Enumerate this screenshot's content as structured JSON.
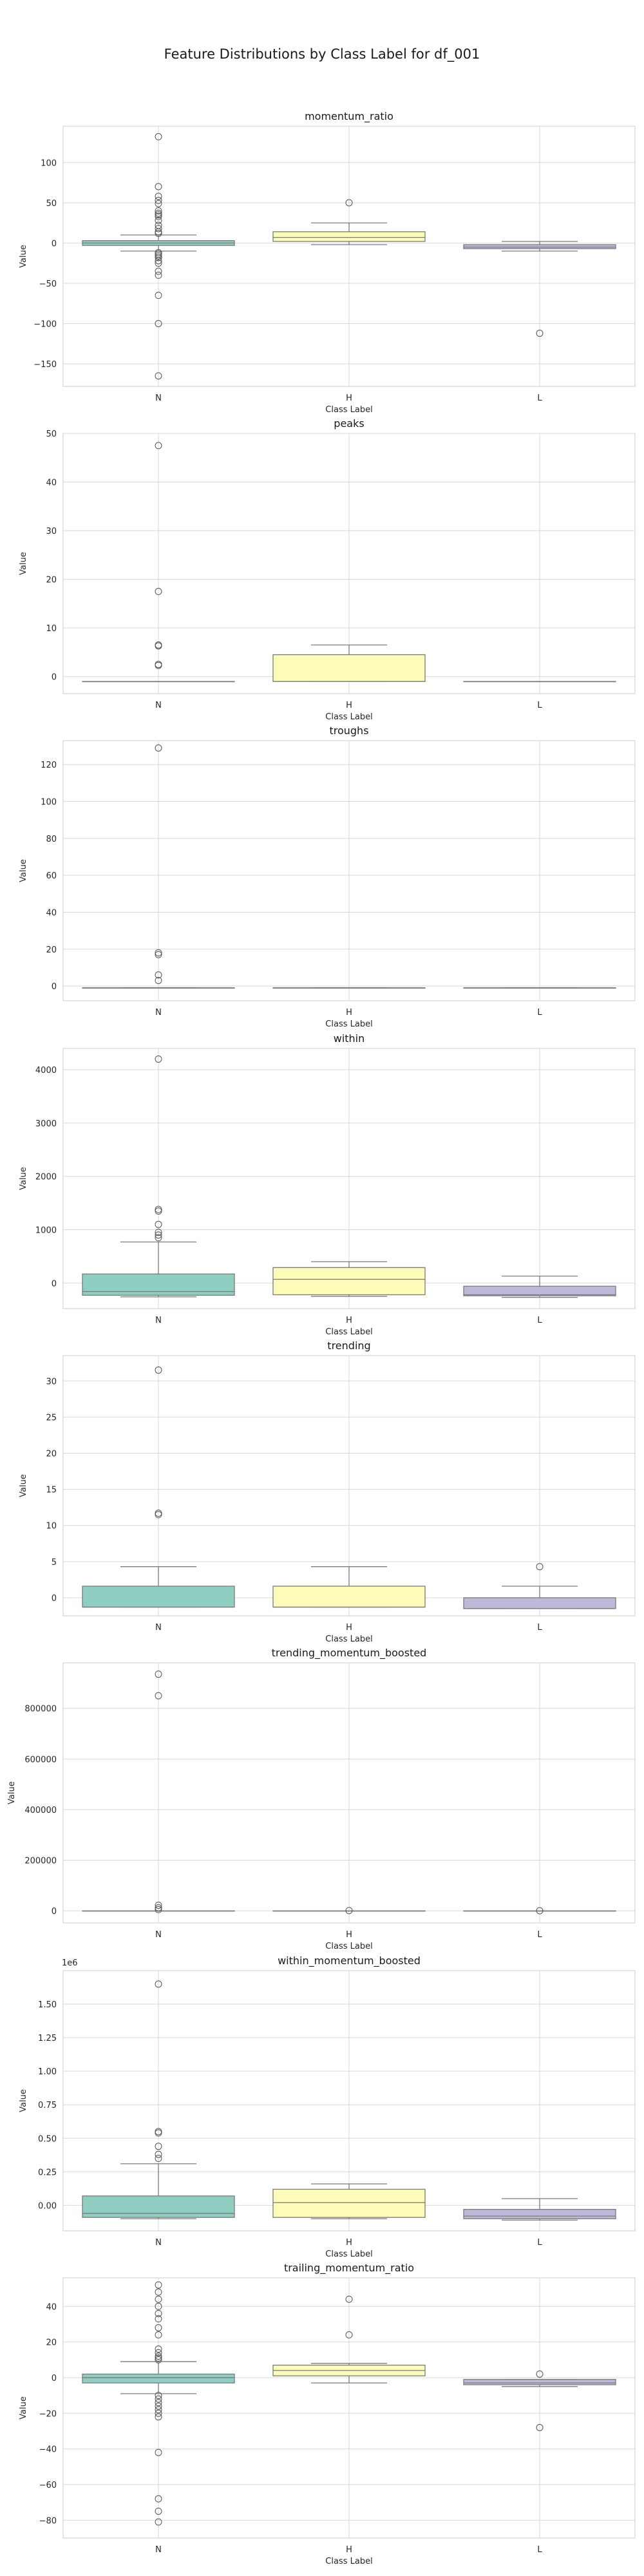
{
  "suptitle": "Feature Distributions by Class Label for df_001",
  "colors": {
    "N": "#8ecfc1",
    "H": "#fdfcb8",
    "L": "#bcb9d9",
    "box_edge": "#7a7a7a",
    "grid": "#d9d9d9",
    "frame": "#cccccc",
    "text": "#262626"
  },
  "chart_data": [
    {
      "type": "box",
      "title": "momentum_ratio",
      "xlabel": "Class Label",
      "ylabel": "Value",
      "categories": [
        "N",
        "H",
        "L"
      ],
      "ylim": [
        -178,
        145
      ],
      "yticks": [
        -150,
        -100,
        -50,
        0,
        50,
        100
      ],
      "yticklabels": [
        "−150",
        "−100",
        "−50",
        "0",
        "50",
        "100"
      ],
      "offset_label": "",
      "grid": true,
      "boxes": [
        {
          "category": "N",
          "whislo": -10,
          "q1": -3,
          "med": 0,
          "q3": 3,
          "whishi": 10,
          "fliers": [
            132,
            70,
            58,
            53,
            49,
            40,
            37,
            35,
            33,
            28,
            22,
            18,
            14,
            12,
            -12,
            -14,
            -16,
            -18,
            -22,
            -25,
            -35,
            -40,
            -65,
            -100,
            -165
          ]
        },
        {
          "category": "H",
          "whislo": -2,
          "q1": 2,
          "med": 7,
          "q3": 14,
          "whishi": 25,
          "fliers": [
            50
          ]
        },
        {
          "category": "L",
          "whislo": -10,
          "q1": -7,
          "med": -5,
          "q3": -2,
          "whishi": 2,
          "fliers": [
            -112
          ]
        }
      ]
    },
    {
      "type": "box",
      "title": "peaks",
      "xlabel": "Class Label",
      "ylabel": "Value",
      "categories": [
        "N",
        "H",
        "L"
      ],
      "ylim": [
        -3.5,
        50
      ],
      "yticks": [
        0,
        10,
        20,
        30,
        40,
        50
      ],
      "yticklabels": [
        "0",
        "10",
        "20",
        "30",
        "40",
        "50"
      ],
      "offset_label": "",
      "grid": true,
      "boxes": [
        {
          "category": "N",
          "whislo": -1,
          "q1": -1,
          "med": -1,
          "q3": -1,
          "whishi": -1,
          "fliers": [
            47.5,
            17.5,
            6.5,
            6.3,
            2.5,
            2.3
          ]
        },
        {
          "category": "H",
          "whislo": -1,
          "q1": -1,
          "med": -1,
          "q3": 4.5,
          "whishi": 6.5,
          "fliers": []
        },
        {
          "category": "L",
          "whislo": -1,
          "q1": -1,
          "med": -1,
          "q3": -1,
          "whishi": -1,
          "fliers": []
        }
      ]
    },
    {
      "type": "box",
      "title": "troughs",
      "xlabel": "Class Label",
      "ylabel": "Value",
      "categories": [
        "N",
        "H",
        "L"
      ],
      "ylim": [
        -8,
        133
      ],
      "yticks": [
        0,
        20,
        40,
        60,
        80,
        100,
        120
      ],
      "yticklabels": [
        "0",
        "20",
        "40",
        "60",
        "80",
        "100",
        "120"
      ],
      "offset_label": "",
      "grid": true,
      "boxes": [
        {
          "category": "N",
          "whislo": -1,
          "q1": -1,
          "med": -1,
          "q3": -1,
          "whishi": -1,
          "fliers": [
            129,
            18,
            17,
            6,
            3
          ]
        },
        {
          "category": "H",
          "whislo": -1,
          "q1": -1,
          "med": -1,
          "q3": -1,
          "whishi": -1,
          "fliers": []
        },
        {
          "category": "L",
          "whislo": -1,
          "q1": -1,
          "med": -1,
          "q3": -1,
          "whishi": -1,
          "fliers": []
        }
      ]
    },
    {
      "type": "box",
      "title": "within",
      "xlabel": "Class Label",
      "ylabel": "Value",
      "categories": [
        "N",
        "H",
        "L"
      ],
      "ylim": [
        -480,
        4400
      ],
      "yticks": [
        0,
        1000,
        2000,
        3000,
        4000
      ],
      "yticklabels": [
        "0",
        "1000",
        "2000",
        "3000",
        "4000"
      ],
      "offset_label": "",
      "grid": true,
      "boxes": [
        {
          "category": "N",
          "whislo": -260,
          "q1": -230,
          "med": -160,
          "q3": 170,
          "whishi": 770,
          "fliers": [
            4200,
            1380,
            1350,
            1100,
            950,
            900,
            850
          ]
        },
        {
          "category": "H",
          "whislo": -250,
          "q1": -220,
          "med": 70,
          "q3": 290,
          "whishi": 400,
          "fliers": []
        },
        {
          "category": "L",
          "whislo": -270,
          "q1": -240,
          "med": -220,
          "q3": -60,
          "whishi": 130,
          "fliers": []
        }
      ]
    },
    {
      "type": "box",
      "title": "trending",
      "xlabel": "Class Label",
      "ylabel": "Value",
      "categories": [
        "N",
        "H",
        "L"
      ],
      "ylim": [
        -2.5,
        33.5
      ],
      "yticks": [
        0,
        5,
        10,
        15,
        20,
        25,
        30
      ],
      "yticklabels": [
        "0",
        "5",
        "10",
        "15",
        "20",
        "25",
        "30"
      ],
      "offset_label": "",
      "grid": true,
      "boxes": [
        {
          "category": "N",
          "whislo": -1.3,
          "q1": -1.3,
          "med": -1.3,
          "q3": 1.6,
          "whishi": 4.3,
          "fliers": [
            31.5,
            11.7,
            11.5
          ]
        },
        {
          "category": "H",
          "whislo": -1.3,
          "q1": -1.3,
          "med": -1.3,
          "q3": 1.6,
          "whishi": 4.3,
          "fliers": []
        },
        {
          "category": "L",
          "whislo": -1.5,
          "q1": -1.5,
          "med": -1.5,
          "q3": 0,
          "whishi": 1.6,
          "fliers": [
            4.3
          ]
        }
      ]
    },
    {
      "type": "box",
      "title": "trending_momentum_boosted",
      "xlabel": "Class Label",
      "ylabel": "Value",
      "categories": [
        "N",
        "H",
        "L"
      ],
      "ylim": [
        -48000,
        980000
      ],
      "yticks": [
        0,
        200000,
        400000,
        600000,
        800000
      ],
      "yticklabels": [
        "0",
        "200000",
        "400000",
        "600000",
        "800000"
      ],
      "offset_label": "",
      "grid": true,
      "boxes": [
        {
          "category": "N",
          "whislo": 0,
          "q1": 0,
          "med": 0,
          "q3": 0,
          "whishi": 0,
          "fliers": [
            935000,
            850000,
            22000,
            12000,
            5000
          ]
        },
        {
          "category": "H",
          "whislo": 0,
          "q1": 0,
          "med": 0,
          "q3": 0,
          "whishi": 0,
          "fliers": [
            1000
          ]
        },
        {
          "category": "L",
          "whislo": 0,
          "q1": 0,
          "med": 0,
          "q3": 0,
          "whishi": 0,
          "fliers": [
            500
          ]
        }
      ]
    },
    {
      "type": "box",
      "title": "within_momentum_boosted",
      "xlabel": "Class Label",
      "ylabel": "Value",
      "categories": [
        "N",
        "H",
        "L"
      ],
      "ylim": [
        -0.19,
        1.75
      ],
      "yticks": [
        0,
        0.25,
        0.5,
        0.75,
        1.0,
        1.25,
        1.5
      ],
      "yticklabels": [
        "0.00",
        "0.25",
        "0.50",
        "0.75",
        "1.00",
        "1.25",
        "1.50"
      ],
      "offset_label": "1e6",
      "grid": true,
      "boxes": [
        {
          "category": "N",
          "whislo": -0.1,
          "q1": -0.09,
          "med": -0.06,
          "q3": 0.07,
          "whishi": 0.31,
          "fliers": [
            1.65,
            0.55,
            0.54,
            0.44,
            0.38,
            0.35
          ]
        },
        {
          "category": "H",
          "whislo": -0.1,
          "q1": -0.09,
          "med": 0.02,
          "q3": 0.12,
          "whishi": 0.16,
          "fliers": []
        },
        {
          "category": "L",
          "whislo": -0.11,
          "q1": -0.1,
          "med": -0.08,
          "q3": -0.03,
          "whishi": 0.05,
          "fliers": []
        }
      ]
    },
    {
      "type": "box",
      "title": "trailing_momentum_ratio",
      "xlabel": "Class Label",
      "ylabel": "Value",
      "categories": [
        "N",
        "H",
        "L"
      ],
      "ylim": [
        -90,
        56
      ],
      "yticks": [
        -80,
        -60,
        -40,
        -20,
        0,
        20,
        40
      ],
      "yticklabels": [
        "−80",
        "−60",
        "−40",
        "−20",
        "0",
        "20",
        "40"
      ],
      "offset_label": "",
      "grid": true,
      "boxes": [
        {
          "category": "N",
          "whislo": -9,
          "q1": -3,
          "med": 0,
          "q3": 2,
          "whishi": 9,
          "fliers": [
            52,
            48,
            44,
            40,
            36,
            33,
            28,
            24,
            16,
            14,
            12,
            11,
            10,
            -10,
            -12,
            -14,
            -16,
            -18,
            -20,
            -22,
            -42,
            -68,
            -75,
            -81
          ]
        },
        {
          "category": "H",
          "whislo": -3,
          "q1": 1,
          "med": 4,
          "q3": 7,
          "whishi": 8,
          "fliers": [
            44,
            24
          ]
        },
        {
          "category": "L",
          "whislo": -5,
          "q1": -4,
          "med": -3,
          "q3": -1,
          "whishi": -1,
          "fliers": [
            2,
            -28
          ]
        }
      ]
    }
  ]
}
